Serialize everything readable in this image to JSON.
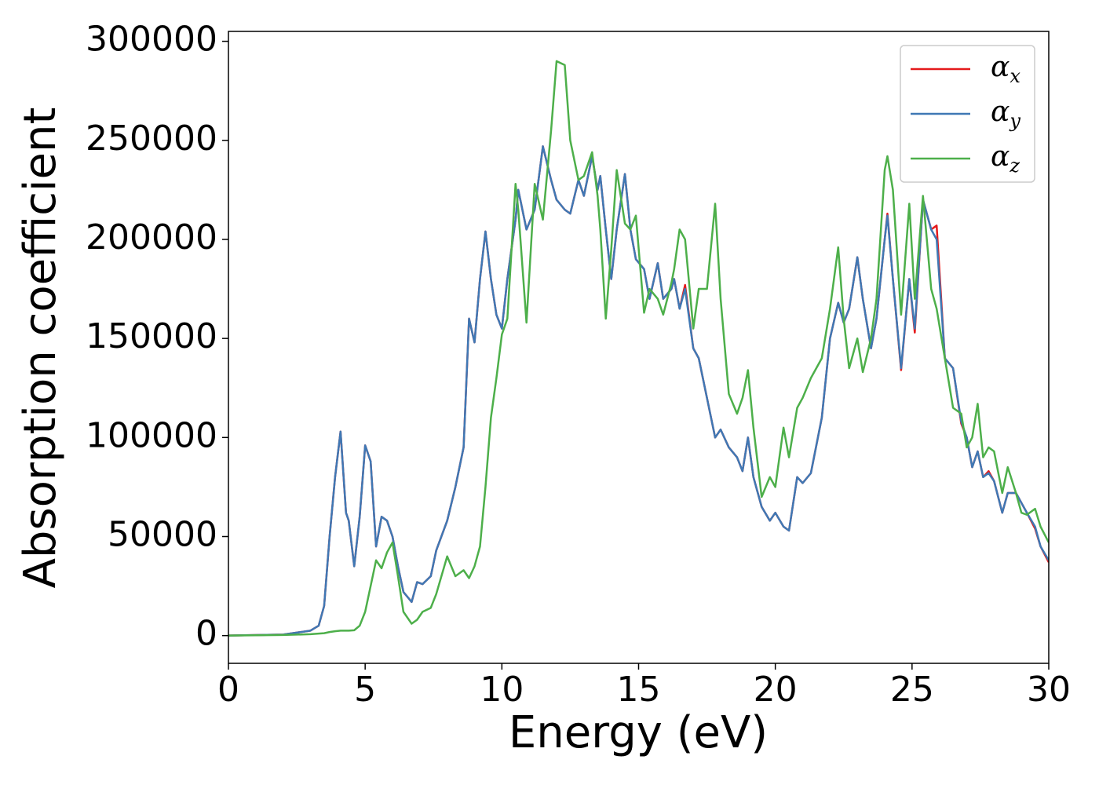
{
  "chart_data": {
    "type": "line",
    "xlabel": "Energy (eV)",
    "ylabel": "Absorption coefficient",
    "x": [
      0,
      2,
      2.5,
      3,
      3.3,
      3.5,
      3.7,
      3.9,
      4.1,
      4.3,
      4.4,
      4.6,
      4.8,
      5.0,
      5.2,
      5.4,
      5.6,
      5.8,
      6.0,
      6.2,
      6.4,
      6.7,
      6.9,
      7.1,
      7.4,
      7.6,
      8.0,
      8.3,
      8.6,
      8.8,
      9.0,
      9.2,
      9.4,
      9.6,
      9.8,
      10.0,
      10.2,
      10.5,
      10.6,
      10.9,
      11.2,
      11.5,
      11.8,
      12.0,
      12.3,
      12.5,
      12.8,
      13.0,
      13.3,
      13.5,
      13.6,
      13.8,
      14.0,
      14.2,
      14.5,
      14.7,
      14.9,
      15.2,
      15.4,
      15.7,
      15.9,
      16.2,
      16.3,
      16.5,
      16.7,
      17.0,
      17.2,
      17.5,
      17.8,
      18.0,
      18.3,
      18.6,
      18.8,
      19.0,
      19.2,
      19.5,
      19.8,
      20.0,
      20.3,
      20.5,
      20.8,
      21.0,
      21.3,
      21.7,
      22.0,
      22.3,
      22.5,
      22.7,
      23.0,
      23.2,
      23.5,
      23.7,
      24.0,
      24.1,
      24.3,
      24.6,
      24.9,
      25.1,
      25.4,
      25.7,
      25.9,
      26.2,
      26.5,
      26.8,
      27.0,
      27.2,
      27.4,
      27.6,
      27.8,
      28.0,
      28.3,
      28.5,
      28.8,
      29.0,
      29.2,
      29.5,
      29.7,
      30
    ],
    "series": [
      {
        "name": "αx",
        "color": "#e41a1c",
        "values": [
          0,
          500,
          1500,
          2500,
          5000,
          15000,
          50000,
          80000,
          103000,
          62000,
          58000,
          35000,
          60000,
          96000,
          88000,
          45000,
          60000,
          58000,
          50000,
          35000,
          22000,
          17000,
          27000,
          26000,
          30000,
          43000,
          58000,
          75000,
          95000,
          160000,
          148000,
          180000,
          204000,
          180000,
          162000,
          155000,
          180000,
          210000,
          225000,
          205000,
          215000,
          247000,
          230000,
          220000,
          215000,
          213000,
          230000,
          222000,
          242000,
          225000,
          232000,
          205000,
          180000,
          205000,
          233000,
          205000,
          190000,
          185000,
          170000,
          188000,
          170000,
          175000,
          180000,
          165000,
          177000,
          145000,
          140000,
          120000,
          100000,
          104000,
          95000,
          90000,
          83000,
          100000,
          80000,
          65000,
          58000,
          62000,
          55000,
          53000,
          80000,
          77000,
          82000,
          110000,
          150000,
          168000,
          158000,
          165000,
          191000,
          170000,
          145000,
          160000,
          200000,
          213000,
          180000,
          134000,
          180000,
          153000,
          220000,
          205000,
          207000,
          140000,
          135000,
          107000,
          100000,
          85000,
          93000,
          80000,
          83000,
          78000,
          62000,
          72000,
          72000,
          67000,
          62000,
          54000,
          45000,
          37000
        ]
      },
      {
        "name": "αy",
        "color": "#3f78b4",
        "values": [
          0,
          500,
          1500,
          2500,
          5000,
          15000,
          50000,
          80000,
          103000,
          62000,
          58000,
          35000,
          60000,
          96000,
          88000,
          45000,
          60000,
          58000,
          50000,
          35000,
          22000,
          17000,
          27000,
          26000,
          30000,
          43000,
          58000,
          75000,
          95000,
          160000,
          148000,
          180000,
          204000,
          180000,
          162000,
          155000,
          180000,
          210000,
          225000,
          205000,
          215000,
          247000,
          230000,
          220000,
          215000,
          213000,
          230000,
          222000,
          242000,
          225000,
          232000,
          205000,
          180000,
          205000,
          233000,
          205000,
          190000,
          185000,
          170000,
          188000,
          170000,
          175000,
          180000,
          165000,
          175000,
          145000,
          140000,
          120000,
          100000,
          104000,
          95000,
          90000,
          83000,
          100000,
          80000,
          65000,
          58000,
          62000,
          55000,
          53000,
          80000,
          77000,
          82000,
          110000,
          150000,
          168000,
          158000,
          165000,
          191000,
          170000,
          145000,
          160000,
          200000,
          212000,
          180000,
          135000,
          180000,
          155000,
          220000,
          205000,
          200000,
          140000,
          135000,
          108000,
          100000,
          85000,
          93000,
          80000,
          82000,
          78000,
          62000,
          72000,
          72000,
          67000,
          62000,
          55000,
          45000,
          38000
        ]
      },
      {
        "name": "αz",
        "color": "#4daf4a",
        "values": [
          0,
          300,
          500,
          700,
          1000,
          1200,
          1800,
          2200,
          2500,
          2500,
          2500,
          2700,
          5000,
          12000,
          25000,
          38000,
          34000,
          42000,
          47000,
          30000,
          12000,
          6000,
          8000,
          12000,
          14000,
          21000,
          40000,
          30000,
          33000,
          29000,
          35000,
          45000,
          75000,
          110000,
          130000,
          152000,
          160000,
          228000,
          215000,
          158000,
          228000,
          210000,
          255000,
          290000,
          288000,
          250000,
          230000,
          232000,
          244000,
          222000,
          205000,
          160000,
          195000,
          235000,
          208000,
          205000,
          212000,
          163000,
          175000,
          170000,
          162000,
          178000,
          185000,
          205000,
          200000,
          155000,
          175000,
          175000,
          218000,
          170000,
          122000,
          112000,
          120000,
          134000,
          105000,
          70000,
          80000,
          75000,
          105000,
          90000,
          115000,
          120000,
          130000,
          140000,
          165000,
          196000,
          160000,
          135000,
          150000,
          133000,
          150000,
          170000,
          235000,
          242000,
          225000,
          162000,
          218000,
          170000,
          222000,
          175000,
          165000,
          140000,
          115000,
          112000,
          95000,
          100000,
          117000,
          90000,
          95000,
          93000,
          72000,
          85000,
          72000,
          62000,
          61000,
          64000,
          55000,
          47000
        ]
      }
    ],
    "xlim": [
      0,
      30
    ],
    "xticks": [
      0,
      5,
      10,
      15,
      20,
      25,
      30
    ],
    "ylim": [
      -14000,
      305000
    ],
    "yticks": [
      0,
      50000,
      100000,
      150000,
      200000,
      250000,
      300000
    ],
    "grid": false,
    "legend": "upper right"
  }
}
